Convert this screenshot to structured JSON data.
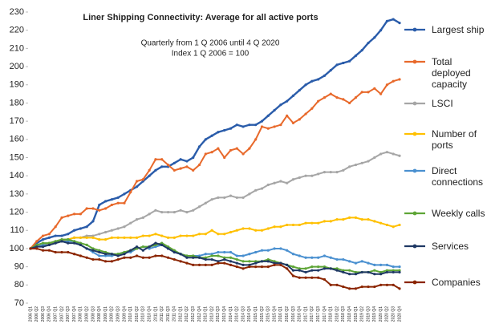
{
  "chart_data": {
    "type": "line",
    "title": "Liner Shipping Connectivity: Average for all active ports",
    "subtitle": [
      "Quarterly from 1 Q 2006 until 4 Q 2020",
      "Index 1 Q 2006 = 100"
    ],
    "categories": [
      "2006 Q1",
      "2006 Q2",
      "2006 Q3",
      "2006 Q4",
      "2007 Q1",
      "2007 Q2",
      "2007 Q3",
      "2007 Q4",
      "2008 Q1",
      "2008 Q2",
      "2008 Q3",
      "2008 Q4",
      "2009 Q1",
      "2009 Q2",
      "2009 Q3",
      "2009 Q4",
      "2010 Q1",
      "2010 Q2",
      "2010 Q3",
      "2010 Q4",
      "2011 Q1",
      "2011 Q2",
      "2011 Q3",
      "2011 Q4",
      "2012 Q1",
      "2012 Q2",
      "2012 Q3",
      "2012 Q4",
      "2013 Q1",
      "2013 Q2",
      "2013 Q3",
      "2013 Q4",
      "2014 Q1",
      "2014 Q2",
      "2014 Q3",
      "2014 Q4",
      "2015 Q1",
      "2015 Q2",
      "2015 Q3",
      "2015 Q4",
      "2016 Q1",
      "2016 Q2",
      "2016 Q3",
      "2016 Q4",
      "2017 Q1",
      "2017 Q2",
      "2017 Q3",
      "2017 Q4",
      "2018 Q1",
      "2018 Q2",
      "2018 Q3",
      "2018 Q4",
      "2019 Q1",
      "2019 Q2",
      "2019 Q3",
      "2019 Q4",
      "2020 Q1",
      "2020 Q2",
      "2020 Q3",
      "2020 Q4"
    ],
    "series": [
      {
        "name": "Largest ship",
        "color": "#2a5caa",
        "values": [
          100,
          103,
          105,
          106,
          107,
          107,
          108,
          110,
          111,
          112,
          115,
          124,
          126,
          127,
          128,
          130,
          132,
          134,
          137,
          140,
          143,
          145,
          145,
          147,
          149,
          148,
          150,
          156,
          160,
          162,
          164,
          165,
          166,
          168,
          167,
          168,
          168,
          170,
          173,
          176,
          179,
          181,
          184,
          187,
          190,
          192,
          193,
          195,
          198,
          201,
          202,
          203,
          206,
          209,
          213,
          216,
          220,
          225,
          226,
          224
        ]
      },
      {
        "name": "Total deployed capacity",
        "color": "#e8692b",
        "values": [
          100,
          104,
          107,
          108,
          112,
          117,
          118,
          119,
          119,
          122,
          122,
          121,
          122,
          124,
          125,
          125,
          131,
          137,
          138,
          143,
          149,
          149,
          146,
          143,
          144,
          145,
          143,
          146,
          152,
          153,
          155,
          150,
          154,
          155,
          152,
          155,
          160,
          167,
          166,
          167,
          168,
          173,
          169,
          171,
          174,
          177,
          181,
          183,
          185,
          183,
          182,
          180,
          183,
          186,
          186,
          188,
          185,
          190,
          192,
          193
        ]
      },
      {
        "name": "LSCI",
        "color": "#a6a6a6",
        "values": [
          100,
          101,
          102,
          103,
          104,
          105,
          105,
          106,
          106,
          107,
          107,
          108,
          109,
          110,
          111,
          112,
          114,
          116,
          117,
          119,
          121,
          120,
          120,
          120,
          121,
          120,
          121,
          123,
          125,
          127,
          128,
          128,
          129,
          128,
          128,
          130,
          132,
          133,
          135,
          136,
          137,
          136,
          138,
          139,
          140,
          140,
          141,
          142,
          142,
          142,
          143,
          145,
          146,
          147,
          148,
          150,
          152,
          153,
          152,
          151
        ]
      },
      {
        "name": "Number of ports",
        "color": "#ffc000",
        "values": [
          100,
          101,
          102,
          103,
          103,
          104,
          105,
          106,
          106,
          106,
          106,
          105,
          105,
          106,
          106,
          106,
          106,
          106,
          107,
          107,
          108,
          107,
          106,
          106,
          107,
          107,
          107,
          108,
          108,
          110,
          108,
          108,
          109,
          110,
          111,
          111,
          110,
          110,
          111,
          112,
          112,
          113,
          113,
          113,
          114,
          114,
          114,
          115,
          115,
          116,
          116,
          117,
          117,
          116,
          116,
          115,
          114,
          113,
          112,
          113
        ]
      },
      {
        "name": "Direct connections",
        "color": "#4a90d0",
        "values": [
          100,
          101,
          102,
          102,
          103,
          104,
          104,
          104,
          102,
          100,
          98,
          96,
          96,
          96,
          97,
          98,
          98,
          100,
          101,
          100,
          101,
          102,
          100,
          98,
          97,
          96,
          96,
          96,
          97,
          97,
          98,
          98,
          98,
          96,
          96,
          97,
          98,
          99,
          99,
          100,
          100,
          99,
          97,
          96,
          95,
          95,
          95,
          96,
          95,
          94,
          94,
          93,
          92,
          93,
          92,
          91,
          91,
          91,
          90,
          90
        ]
      },
      {
        "name": "Weekly calls",
        "color": "#5ea536",
        "values": [
          100,
          102,
          103,
          103,
          104,
          105,
          105,
          104,
          103,
          102,
          100,
          99,
          98,
          97,
          97,
          98,
          99,
          100,
          101,
          101,
          102,
          103,
          101,
          99,
          97,
          96,
          96,
          95,
          95,
          96,
          96,
          95,
          95,
          94,
          93,
          93,
          93,
          93,
          94,
          93,
          92,
          91,
          90,
          89,
          89,
          90,
          90,
          90,
          89,
          89,
          88,
          88,
          87,
          87,
          87,
          88,
          87,
          88,
          88,
          88
        ]
      },
      {
        "name": "Services",
        "color": "#1f3864",
        "values": [
          100,
          101,
          101,
          102,
          103,
          104,
          103,
          103,
          102,
          100,
          99,
          98,
          97,
          97,
          96,
          97,
          99,
          101,
          99,
          101,
          103,
          102,
          100,
          98,
          97,
          95,
          95,
          95,
          94,
          94,
          93,
          94,
          93,
          92,
          91,
          91,
          92,
          93,
          93,
          92,
          92,
          91,
          88,
          88,
          87,
          88,
          88,
          89,
          89,
          88,
          87,
          86,
          86,
          87,
          87,
          86,
          86,
          87,
          87,
          87
        ]
      },
      {
        "name": "Companies",
        "color": "#8b2500",
        "values": [
          100,
          100,
          99,
          99,
          98,
          98,
          98,
          97,
          96,
          95,
          94,
          94,
          93,
          93,
          94,
          95,
          95,
          96,
          95,
          95,
          96,
          96,
          95,
          94,
          93,
          92,
          91,
          91,
          91,
          91,
          92,
          92,
          91,
          90,
          89,
          90,
          90,
          90,
          90,
          91,
          91,
          89,
          85,
          84,
          84,
          84,
          84,
          83,
          80,
          80,
          79,
          78,
          78,
          79,
          79,
          79,
          80,
          80,
          80,
          78
        ]
      }
    ],
    "ylim": [
      70,
      230
    ],
    "yticks": [
      70,
      80,
      90,
      100,
      110,
      120,
      130,
      140,
      150,
      160,
      170,
      180,
      190,
      200,
      210,
      220,
      230
    ],
    "grid": false
  }
}
